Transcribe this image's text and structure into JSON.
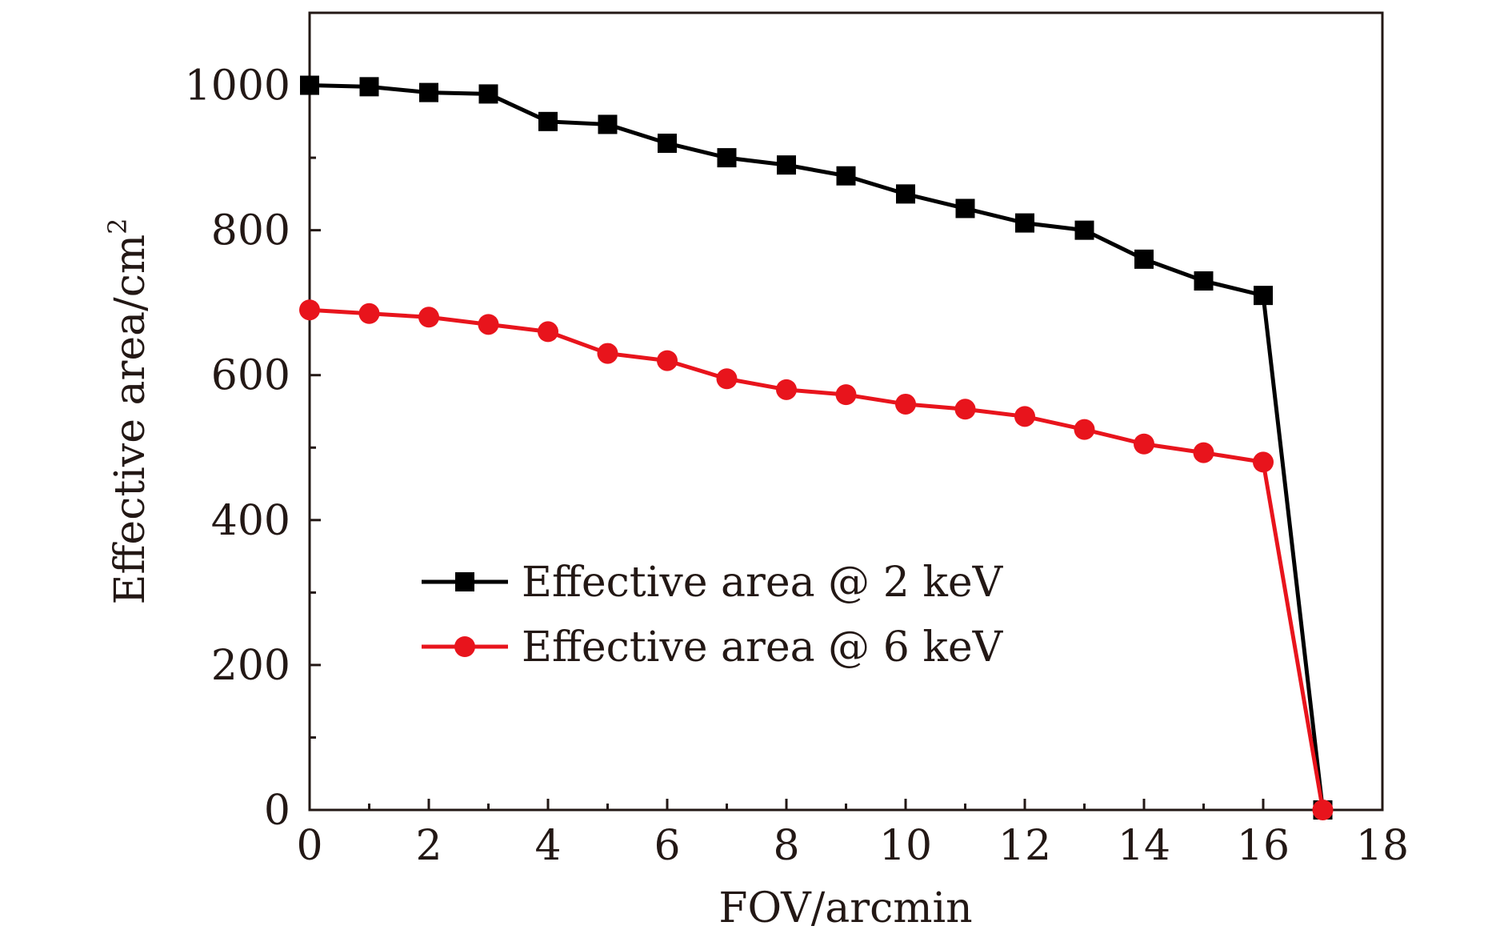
{
  "chart_data": {
    "type": "line",
    "title": "",
    "xlabel": "FOV/arcmin",
    "ylabel": "Effective area/cm",
    "ylabel_superscript": "2",
    "xlim": [
      0,
      18
    ],
    "ylim": [
      0,
      1100
    ],
    "xticks": [
      0,
      2,
      4,
      6,
      8,
      10,
      12,
      14,
      16,
      18
    ],
    "yticks": [
      0,
      200,
      400,
      600,
      800,
      1000
    ],
    "xtick_labels": [
      "0",
      "2",
      "4",
      "6",
      "8",
      "10",
      "12",
      "14",
      "16",
      "18"
    ],
    "ytick_labels": [
      "0",
      "200",
      "400",
      "600",
      "800",
      "1000"
    ],
    "grid": false,
    "legend_position": "center-left",
    "x": [
      0,
      1,
      2,
      3,
      4,
      5,
      6,
      7,
      8,
      9,
      10,
      11,
      12,
      13,
      14,
      15,
      16,
      17
    ],
    "series": [
      {
        "name": "Effective area @ 2 keV",
        "color": "#000000",
        "marker": "square",
        "values": [
          1000,
          998,
          990,
          988,
          950,
          946,
          920,
          900,
          890,
          875,
          850,
          830,
          810,
          800,
          760,
          730,
          710,
          0
        ]
      },
      {
        "name": "Effective area @ 6 keV",
        "color": "#e8141c",
        "marker": "circle",
        "values": [
          690,
          685,
          680,
          670,
          660,
          630,
          620,
          595,
          580,
          573,
          560,
          553,
          543,
          525,
          505,
          493,
          480,
          0
        ]
      }
    ]
  }
}
